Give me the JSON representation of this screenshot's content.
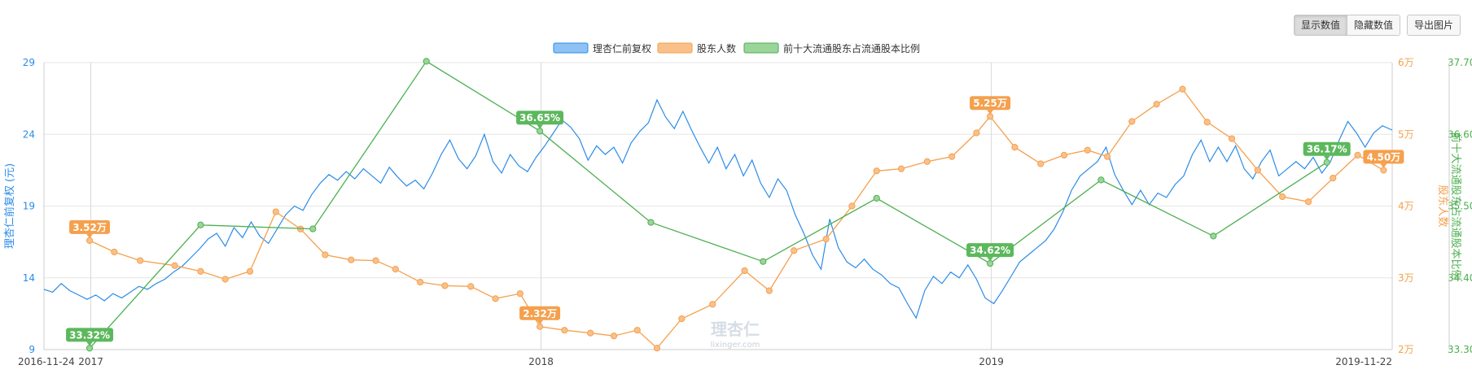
{
  "toolbar": {
    "show_values": "显示数值",
    "hide_values": "隐藏数值",
    "export_image": "导出图片"
  },
  "watermark": {
    "cn": "理杏仁",
    "en": "lixinger.com"
  },
  "colors": {
    "price": "#2b8ce8",
    "holders": "#f5a04d",
    "ratio": "#4caf50",
    "grid": "#e6e6e6"
  },
  "chart_data": {
    "type": "line",
    "legend_position": "top-center",
    "x_range": [
      "2016-11-24",
      "2019-11-22"
    ],
    "x_ticks": [
      {
        "label": "2016-11-24",
        "date": "2016-11-24"
      },
      {
        "label": "2017",
        "date": "2017-01-01"
      },
      {
        "label": "2018",
        "date": "2018-01-01"
      },
      {
        "label": "2019",
        "date": "2019-01-01"
      },
      {
        "label": "2019-11-22",
        "date": "2019-11-22"
      }
    ],
    "y_left": {
      "label": "理杏仁前复权 (元)",
      "range": [
        9,
        29
      ],
      "ticks": [
        "9",
        "14",
        "19",
        "24",
        "29"
      ]
    },
    "y_right1": {
      "label": "股东人数",
      "range": [
        20000,
        60000
      ],
      "ticks": [
        "2万",
        "3万",
        "4万",
        "5万",
        "6万"
      ]
    },
    "y_right2": {
      "label": "前十大流通股东占流通股本比例",
      "range": [
        33.3,
        37.7
      ],
      "ticks": [
        "33.30%",
        "34.40%",
        "35.50%",
        "36.60%",
        "37.70%"
      ]
    },
    "series": [
      {
        "name": "理杏仁前复权",
        "axis": "left",
        "points": [
          [
            "2016-11-24",
            13.2
          ],
          [
            "2016-12-01",
            13.0
          ],
          [
            "2016-12-08",
            13.6
          ],
          [
            "2016-12-15",
            13.1
          ],
          [
            "2016-12-22",
            12.8
          ],
          [
            "2016-12-29",
            12.5
          ],
          [
            "2017-01-05",
            12.8
          ],
          [
            "2017-01-12",
            12.4
          ],
          [
            "2017-01-19",
            12.9
          ],
          [
            "2017-01-26",
            12.6
          ],
          [
            "2017-02-02",
            13.0
          ],
          [
            "2017-02-09",
            13.4
          ],
          [
            "2017-02-16",
            13.2
          ],
          [
            "2017-02-23",
            13.6
          ],
          [
            "2017-03-02",
            13.9
          ],
          [
            "2017-03-09",
            14.4
          ],
          [
            "2017-03-16",
            14.8
          ],
          [
            "2017-03-23",
            15.4
          ],
          [
            "2017-03-30",
            16.0
          ],
          [
            "2017-04-06",
            16.7
          ],
          [
            "2017-04-13",
            17.1
          ],
          [
            "2017-04-20",
            16.2
          ],
          [
            "2017-04-27",
            17.5
          ],
          [
            "2017-05-04",
            16.8
          ],
          [
            "2017-05-11",
            17.9
          ],
          [
            "2017-05-18",
            16.9
          ],
          [
            "2017-05-25",
            16.4
          ],
          [
            "2017-06-01",
            17.4
          ],
          [
            "2017-06-08",
            18.4
          ],
          [
            "2017-06-15",
            19.0
          ],
          [
            "2017-06-22",
            18.7
          ],
          [
            "2017-06-29",
            19.8
          ],
          [
            "2017-07-06",
            20.6
          ],
          [
            "2017-07-13",
            21.2
          ],
          [
            "2017-07-20",
            20.8
          ],
          [
            "2017-07-27",
            21.4
          ],
          [
            "2017-08-03",
            20.9
          ],
          [
            "2017-08-10",
            21.6
          ],
          [
            "2017-08-17",
            21.1
          ],
          [
            "2017-08-24",
            20.6
          ],
          [
            "2017-08-31",
            21.7
          ],
          [
            "2017-09-07",
            21.0
          ],
          [
            "2017-09-14",
            20.4
          ],
          [
            "2017-09-21",
            20.8
          ],
          [
            "2017-09-28",
            20.2
          ],
          [
            "2017-10-05",
            21.3
          ],
          [
            "2017-10-12",
            22.6
          ],
          [
            "2017-10-19",
            23.6
          ],
          [
            "2017-10-26",
            22.3
          ],
          [
            "2017-11-02",
            21.6
          ],
          [
            "2017-11-09",
            22.5
          ],
          [
            "2017-11-16",
            24.0
          ],
          [
            "2017-11-23",
            22.1
          ],
          [
            "2017-11-30",
            21.3
          ],
          [
            "2017-12-07",
            22.6
          ],
          [
            "2017-12-14",
            21.8
          ],
          [
            "2017-12-21",
            21.4
          ],
          [
            "2017-12-28",
            22.4
          ],
          [
            "2018-01-04",
            23.2
          ],
          [
            "2018-01-11",
            24.1
          ],
          [
            "2018-01-18",
            25.0
          ],
          [
            "2018-01-25",
            24.5
          ],
          [
            "2018-02-01",
            23.7
          ],
          [
            "2018-02-08",
            22.2
          ],
          [
            "2018-02-15",
            23.2
          ],
          [
            "2018-02-22",
            22.6
          ],
          [
            "2018-03-01",
            23.1
          ],
          [
            "2018-03-08",
            22.0
          ],
          [
            "2018-03-15",
            23.4
          ],
          [
            "2018-03-22",
            24.2
          ],
          [
            "2018-03-29",
            24.8
          ],
          [
            "2018-04-05",
            26.4
          ],
          [
            "2018-04-12",
            25.2
          ],
          [
            "2018-04-19",
            24.4
          ],
          [
            "2018-04-26",
            25.6
          ],
          [
            "2018-05-03",
            24.3
          ],
          [
            "2018-05-10",
            23.1
          ],
          [
            "2018-05-17",
            22.0
          ],
          [
            "2018-05-24",
            23.1
          ],
          [
            "2018-05-31",
            21.6
          ],
          [
            "2018-06-07",
            22.6
          ],
          [
            "2018-06-14",
            21.1
          ],
          [
            "2018-06-21",
            22.2
          ],
          [
            "2018-06-28",
            20.6
          ],
          [
            "2018-07-05",
            19.6
          ],
          [
            "2018-07-12",
            20.9
          ],
          [
            "2018-07-19",
            20.1
          ],
          [
            "2018-07-26",
            18.4
          ],
          [
            "2018-08-02",
            17.1
          ],
          [
            "2018-08-09",
            15.6
          ],
          [
            "2018-08-16",
            14.6
          ],
          [
            "2018-08-23",
            18.1
          ],
          [
            "2018-08-30",
            16.1
          ],
          [
            "2018-09-06",
            15.1
          ],
          [
            "2018-09-13",
            14.7
          ],
          [
            "2018-09-20",
            15.3
          ],
          [
            "2018-09-27",
            14.6
          ],
          [
            "2018-10-04",
            14.2
          ],
          [
            "2018-10-11",
            13.6
          ],
          [
            "2018-10-18",
            13.3
          ],
          [
            "2018-10-25",
            12.2
          ],
          [
            "2018-11-01",
            11.2
          ],
          [
            "2018-11-08",
            13.1
          ],
          [
            "2018-11-15",
            14.1
          ],
          [
            "2018-11-22",
            13.6
          ],
          [
            "2018-11-29",
            14.4
          ],
          [
            "2018-12-06",
            14.0
          ],
          [
            "2018-12-13",
            14.9
          ],
          [
            "2018-12-20",
            13.9
          ],
          [
            "2018-12-27",
            12.6
          ],
          [
            "2019-01-03",
            12.2
          ],
          [
            "2019-01-10",
            13.1
          ],
          [
            "2019-01-17",
            14.1
          ],
          [
            "2019-01-24",
            15.1
          ],
          [
            "2019-01-31",
            15.6
          ],
          [
            "2019-02-07",
            16.1
          ],
          [
            "2019-02-14",
            16.6
          ],
          [
            "2019-02-21",
            17.4
          ],
          [
            "2019-02-28",
            18.6
          ],
          [
            "2019-03-07",
            20.1
          ],
          [
            "2019-03-14",
            21.1
          ],
          [
            "2019-03-21",
            21.6
          ],
          [
            "2019-03-28",
            22.1
          ],
          [
            "2019-04-04",
            23.1
          ],
          [
            "2019-04-11",
            21.2
          ],
          [
            "2019-04-18",
            20.1
          ],
          [
            "2019-04-25",
            19.1
          ],
          [
            "2019-05-02",
            20.1
          ],
          [
            "2019-05-09",
            19.1
          ],
          [
            "2019-05-16",
            19.9
          ],
          [
            "2019-05-23",
            19.6
          ],
          [
            "2019-05-30",
            20.5
          ],
          [
            "2019-06-06",
            21.1
          ],
          [
            "2019-06-13",
            22.6
          ],
          [
            "2019-06-20",
            23.6
          ],
          [
            "2019-06-27",
            22.1
          ],
          [
            "2019-07-04",
            23.1
          ],
          [
            "2019-07-11",
            22.1
          ],
          [
            "2019-07-18",
            23.2
          ],
          [
            "2019-07-25",
            21.6
          ],
          [
            "2019-08-01",
            20.9
          ],
          [
            "2019-08-08",
            22.1
          ],
          [
            "2019-08-15",
            22.9
          ],
          [
            "2019-08-22",
            21.1
          ],
          [
            "2019-08-29",
            21.6
          ],
          [
            "2019-09-05",
            22.1
          ],
          [
            "2019-09-12",
            21.6
          ],
          [
            "2019-09-19",
            22.4
          ],
          [
            "2019-09-26",
            21.3
          ],
          [
            "2019-10-03",
            22.1
          ],
          [
            "2019-10-10",
            23.6
          ],
          [
            "2019-10-17",
            24.9
          ],
          [
            "2019-10-24",
            24.1
          ],
          [
            "2019-10-31",
            23.1
          ],
          [
            "2019-11-07",
            24.1
          ],
          [
            "2019-11-14",
            24.6
          ],
          [
            "2019-11-22",
            24.3
          ]
        ]
      },
      {
        "name": "股东人数",
        "axis": "right1",
        "labels": [
          {
            "date": "2016-12-31",
            "text": "3.52万"
          },
          {
            "date": "2017-12-31",
            "text": "2.32万"
          },
          {
            "date": "2018-12-31",
            "text": "5.25万"
          },
          {
            "date": "2019-11-15",
            "text": "4.50万"
          }
        ],
        "points": [
          [
            "2016-12-31",
            35200
          ],
          [
            "2017-01-20",
            33600
          ],
          [
            "2017-02-10",
            32400
          ],
          [
            "2017-03-10",
            31700
          ],
          [
            "2017-03-31",
            30900
          ],
          [
            "2017-04-20",
            29800
          ],
          [
            "2017-05-10",
            30900
          ],
          [
            "2017-05-31",
            39200
          ],
          [
            "2017-06-20",
            36800
          ],
          [
            "2017-07-10",
            33200
          ],
          [
            "2017-07-31",
            32500
          ],
          [
            "2017-08-20",
            32400
          ],
          [
            "2017-09-05",
            31200
          ],
          [
            "2017-09-25",
            29400
          ],
          [
            "2017-10-15",
            28900
          ],
          [
            "2017-11-05",
            28800
          ],
          [
            "2017-11-25",
            27100
          ],
          [
            "2017-12-15",
            27800
          ],
          [
            "2017-12-31",
            23200
          ],
          [
            "2018-01-20",
            22700
          ],
          [
            "2018-02-10",
            22300
          ],
          [
            "2018-03-01",
            21900
          ],
          [
            "2018-03-20",
            22700
          ],
          [
            "2018-04-05",
            20200
          ],
          [
            "2018-04-25",
            24300
          ],
          [
            "2018-05-20",
            26300
          ],
          [
            "2018-06-15",
            31000
          ],
          [
            "2018-07-05",
            28200
          ],
          [
            "2018-07-25",
            33800
          ],
          [
            "2018-08-20",
            35400
          ],
          [
            "2018-09-10",
            40000
          ],
          [
            "2018-09-30",
            44900
          ],
          [
            "2018-10-20",
            45200
          ],
          [
            "2018-11-10",
            46200
          ],
          [
            "2018-11-30",
            46900
          ],
          [
            "2018-12-20",
            50200
          ],
          [
            "2018-12-31",
            52500
          ],
          [
            "2019-01-20",
            48200
          ],
          [
            "2019-02-10",
            45900
          ],
          [
            "2019-03-01",
            47100
          ],
          [
            "2019-03-20",
            47800
          ],
          [
            "2019-04-05",
            46900
          ],
          [
            "2019-04-25",
            51800
          ],
          [
            "2019-05-15",
            54200
          ],
          [
            "2019-06-05",
            56300
          ],
          [
            "2019-06-25",
            51700
          ],
          [
            "2019-07-15",
            49400
          ],
          [
            "2019-08-05",
            45000
          ],
          [
            "2019-08-25",
            41300
          ],
          [
            "2019-09-15",
            40600
          ],
          [
            "2019-10-05",
            43900
          ],
          [
            "2019-10-25",
            47100
          ],
          [
            "2019-11-15",
            45000
          ]
        ]
      },
      {
        "name": "前十大流通股东占流通股本比例",
        "axis": "right2",
        "labels": [
          {
            "date": "2016-12-31",
            "text": "33.32%"
          },
          {
            "date": "2017-12-31",
            "text": "36.65%"
          },
          {
            "date": "2018-12-31",
            "text": "34.62%"
          },
          {
            "date": "2019-09-30",
            "text": "36.17%"
          }
        ],
        "points": [
          [
            "2016-12-31",
            33.32
          ],
          [
            "2017-03-31",
            35.21
          ],
          [
            "2017-06-30",
            35.15
          ],
          [
            "2017-09-30",
            37.72
          ],
          [
            "2017-12-31",
            36.65
          ],
          [
            "2018-03-31",
            35.25
          ],
          [
            "2018-06-30",
            34.65
          ],
          [
            "2018-09-30",
            35.62
          ],
          [
            "2018-12-31",
            34.62
          ],
          [
            "2019-03-31",
            35.9
          ],
          [
            "2019-06-30",
            35.04
          ],
          [
            "2019-09-30",
            36.17
          ]
        ]
      }
    ]
  }
}
